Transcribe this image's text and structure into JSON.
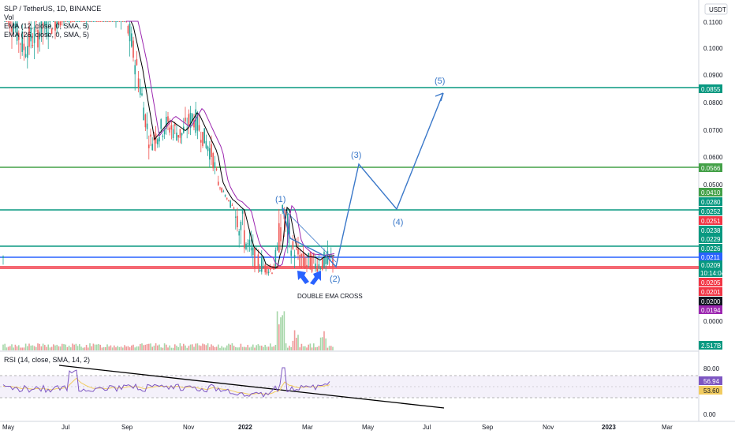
{
  "header": {
    "title": "SLP / TetherUS, 1D, BINANCE",
    "vol": "Vol",
    "ema1": "EMA (12, close, 0, SMA, 5)",
    "ema2": "EMA (26, close, 0, SMA, 5)",
    "currency": "USDT"
  },
  "rsi_header": "RSI (14, close, SMA, 14, 2)",
  "chart_data": {
    "type": "candlestick",
    "title": "SLP / TetherUS, 1D, BINANCE",
    "price_ticks": [
      "0.1100",
      "0.1000",
      "0.0900",
      "0.0800",
      "0.0700",
      "0.0600",
      "0.0500",
      "0.0000"
    ],
    "price_badges": [
      {
        "value": "0.0855",
        "color": "#089981"
      },
      {
        "value": "0.0566",
        "color": "#43a047"
      },
      {
        "value": "0.0410",
        "color": "#43a047"
      },
      {
        "value": "0.0280",
        "color": "#089981"
      },
      {
        "value": "0.0252",
        "color": "#089981"
      },
      {
        "value": "0.0251",
        "color": "#f23645"
      },
      {
        "value": "0.0238",
        "color": "#089981"
      },
      {
        "value": "0.0229",
        "color": "#089981"
      },
      {
        "value": "0.0226",
        "color": "#089981"
      },
      {
        "value": "0.0211",
        "color": "#2962ff"
      },
      {
        "value": "0.0209",
        "color": "#089981",
        "sub": "10:14:04"
      },
      {
        "value": "0.0205",
        "color": "#f23645"
      },
      {
        "value": "0.0201",
        "color": "#f23645"
      },
      {
        "value": "0.0200",
        "color": "#131722"
      },
      {
        "value": "0.0194",
        "color": "#9c27b0"
      },
      {
        "value": "2.517B",
        "color": "#089981"
      }
    ],
    "horizontal_levels": [
      {
        "price": 0.0855,
        "color": "#089981"
      },
      {
        "price": 0.0566,
        "color": "#43a047"
      },
      {
        "price": 0.0252,
        "color": "#089981"
      },
      {
        "price": 0.0229,
        "color": "#089981"
      },
      {
        "price": 0.0211,
        "color": "#2962ff"
      },
      {
        "price": 0.0205,
        "color": "#f23645"
      },
      {
        "price": 0.0201,
        "color": "#f23645"
      }
    ],
    "time_labels": [
      "May",
      "Jul",
      "Sep",
      "Nov",
      "2022",
      "Mar",
      "May",
      "Jul",
      "Sep",
      "Nov",
      "2023",
      "Mar"
    ],
    "elliott_waves": [
      "(1)",
      "(2)",
      "(3)",
      "(4)",
      "(5)"
    ],
    "annotation": "DOUBLE EMA CROSS",
    "rsi": {
      "ticks": [
        "80.00",
        "0.00"
      ],
      "upper": 70,
      "lower": 30,
      "value": "56.94",
      "sma": "53.60"
    }
  }
}
